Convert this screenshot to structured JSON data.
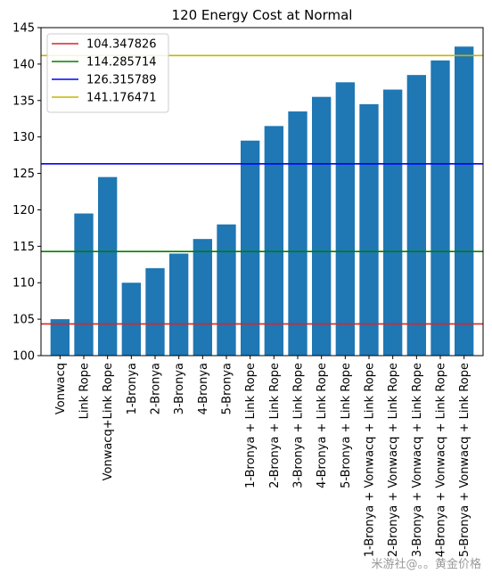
{
  "chart_data": {
    "type": "bar",
    "title": "120 Energy Cost at Normal",
    "xlabel": "",
    "ylabel": "",
    "ylim": [
      100,
      145
    ],
    "yticks": [
      100,
      105,
      110,
      115,
      120,
      125,
      130,
      135,
      140,
      145
    ],
    "grid": false,
    "legend_position": "top-left",
    "bar_color": "#1f77b4",
    "categories": [
      "Vonwacq",
      "Link Rope",
      "Vonwacq+Link Rope",
      "1-Bronya",
      "2-Bronya",
      "3-Bronya",
      "4-Bronya",
      "5-Bronya",
      "1-Bronya + Link Rope",
      "2-Bronya + Link Rope",
      "3-Bronya + Link Rope",
      "4-Bronya + Link Rope",
      "5-Bronya + Link Rope",
      "1-Bronya + Vonwacq + Link Rope",
      "2-Bronya + Vonwacq + Link Rope",
      "3-Bronya + Vonwacq + Link Rope",
      "4-Bronya + Vonwacq + Link Rope",
      "5-Bronya + Vonwacq + Link Rope"
    ],
    "values": [
      105.0,
      119.5,
      124.5,
      110.0,
      112.0,
      114.0,
      116.0,
      118.0,
      129.5,
      131.5,
      133.5,
      135.5,
      137.5,
      134.5,
      136.5,
      138.5,
      140.5,
      142.4
    ],
    "hlines": [
      {
        "label": "104.347826",
        "value": 104.347826,
        "color": "#d62728"
      },
      {
        "label": "114.285714",
        "value": 114.285714,
        "color": "#008000"
      },
      {
        "label": "126.315789",
        "value": 126.315789,
        "color": "#0000ff"
      },
      {
        "label": "141.176471",
        "value": 141.176471,
        "color": "#c8b400"
      }
    ]
  },
  "watermark": "米游社@。。黄金价格"
}
